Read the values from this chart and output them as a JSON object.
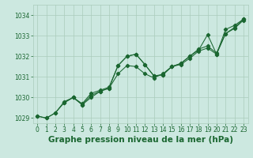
{
  "background_color": "#cce8e0",
  "grid_color": "#aaccbb",
  "line_color": "#1a6630",
  "xlabel": "Graphe pression niveau de la mer (hPa)",
  "xlabel_fontsize": 7.5,
  "ylim": [
    1028.75,
    1034.5
  ],
  "xlim": [
    -0.5,
    23.5
  ],
  "yticks": [
    1029,
    1030,
    1031,
    1032,
    1033,
    1034
  ],
  "xticks": [
    0,
    1,
    2,
    3,
    4,
    5,
    6,
    7,
    8,
    9,
    10,
    11,
    12,
    13,
    14,
    15,
    16,
    17,
    18,
    19,
    20,
    21,
    22,
    23
  ],
  "line1_x": [
    0,
    1,
    2,
    3,
    4,
    5,
    6,
    7,
    8,
    9,
    10,
    11,
    12,
    13,
    14,
    15,
    16,
    17,
    18,
    19,
    20,
    21,
    22,
    23
  ],
  "line1_y": [
    1029.1,
    1029.0,
    1029.25,
    1029.8,
    1030.0,
    1029.7,
    1030.2,
    1030.35,
    1030.5,
    1031.55,
    1032.0,
    1032.1,
    1031.6,
    1031.05,
    1031.1,
    1031.5,
    1031.65,
    1032.0,
    1032.35,
    1032.5,
    1032.15,
    1033.1,
    1033.4,
    1033.8
  ],
  "line2_x": [
    0,
    1,
    2,
    3,
    4,
    5,
    6,
    7,
    8,
    9,
    10,
    11,
    12,
    13,
    14,
    15,
    16,
    17,
    18,
    19,
    20,
    21,
    22,
    23
  ],
  "line2_y": [
    1029.1,
    1029.0,
    1029.25,
    1029.75,
    1030.0,
    1029.65,
    1030.0,
    1030.3,
    1030.45,
    1031.15,
    1031.55,
    1031.5,
    1031.15,
    1030.95,
    1031.15,
    1031.5,
    1031.6,
    1031.9,
    1032.25,
    1032.4,
    1032.1,
    1033.1,
    1033.35,
    1033.75
  ],
  "line3_x": [
    3,
    4,
    5,
    6,
    7,
    8,
    9,
    10,
    11,
    12,
    13,
    14,
    15,
    16,
    17,
    18,
    19,
    20,
    21,
    22,
    23
  ],
  "line3_y": [
    1029.75,
    1030.0,
    1029.65,
    1030.1,
    1030.3,
    1030.45,
    1031.55,
    1032.0,
    1032.1,
    1031.6,
    1031.05,
    1031.1,
    1031.5,
    1031.65,
    1032.0,
    1032.3,
    1033.05,
    1032.1,
    1033.3,
    1033.5,
    1033.8
  ]
}
